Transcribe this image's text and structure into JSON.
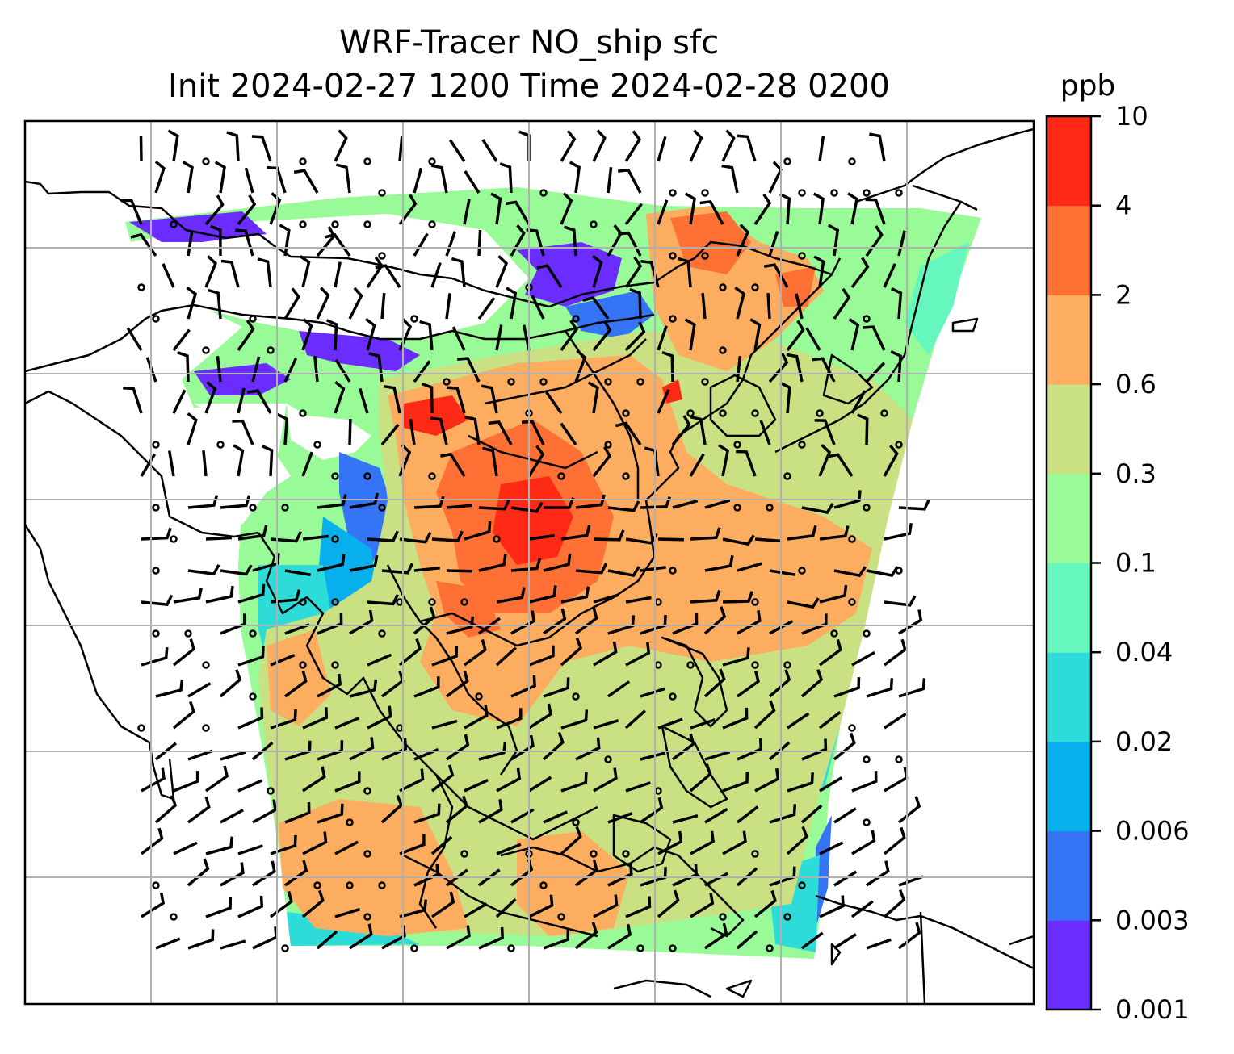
{
  "title": {
    "line1": "WRF-Tracer NO_ship sfc",
    "line2": "Init 2024-02-27 1200 Time 2024-02-28 0200"
  },
  "colorbar": {
    "unit": "ppb",
    "ticks": [
      "0.001",
      "0.003",
      "0.006",
      "0.02",
      "0.04",
      "0.1",
      "0.3",
      "0.6",
      "2",
      "4",
      "10"
    ],
    "colors": [
      "#6a2cff",
      "#3574f4",
      "#07b0ec",
      "#2ddcd8",
      "#66f7be",
      "#99fa98",
      "#c9e083",
      "#fdad60",
      "#ff7035",
      "#ff2a16"
    ]
  },
  "map": {
    "field": "NO_ship sfc",
    "gridlines": true,
    "coastline_color": "#000000",
    "barb_color": "#000000"
  }
}
